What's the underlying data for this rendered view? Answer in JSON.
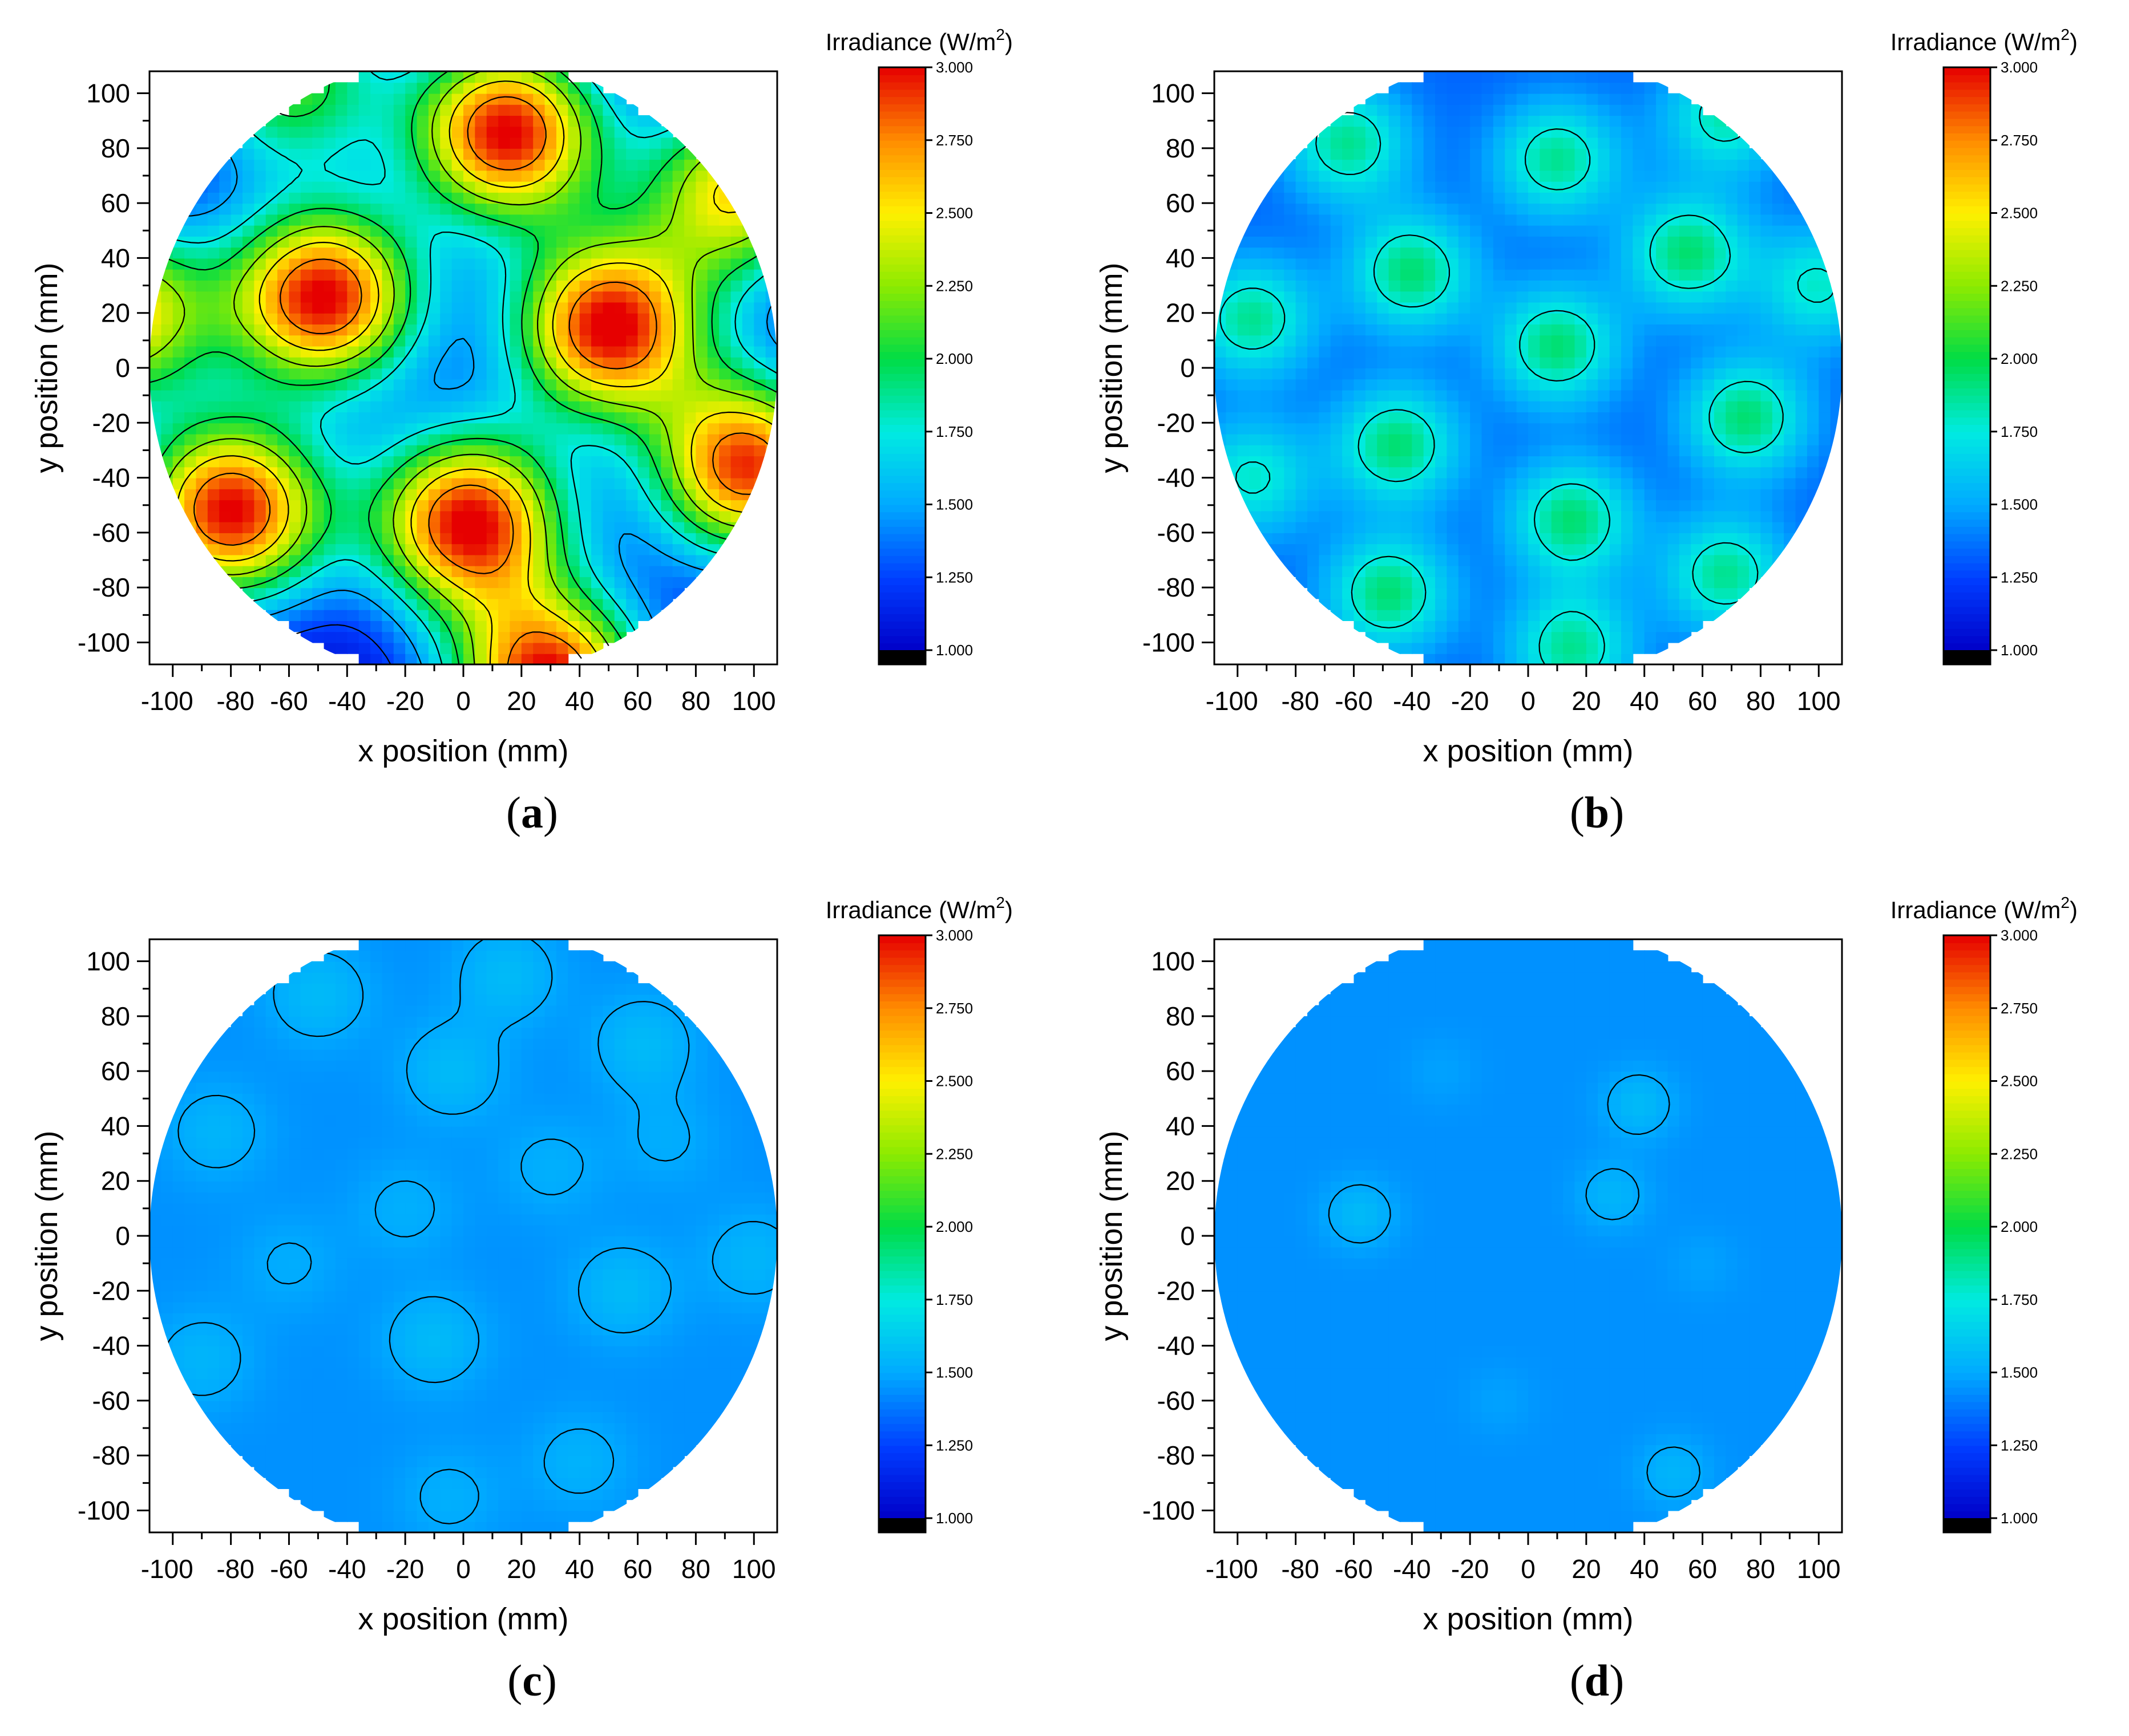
{
  "chart_data": [
    {
      "type": "heatmap",
      "panel_label": "a",
      "title": "",
      "xlabel": "x position (mm)",
      "ylabel": "y position (mm)",
      "xlim": [
        -108,
        108
      ],
      "ylim": [
        -108,
        108
      ],
      "x_ticks": [
        -100,
        -80,
        -60,
        -40,
        -20,
        0,
        20,
        40,
        60,
        80,
        100
      ],
      "x_tick_labels": [
        "-100",
        "-80",
        "-60",
        "-40",
        "-20",
        "0",
        "20",
        "40",
        "60",
        "80",
        "100"
      ],
      "y_ticks": [
        100,
        80,
        60,
        40,
        20,
        0,
        -20,
        -40,
        -60,
        -80,
        -100
      ],
      "y_tick_labels": [
        "100",
        "80",
        "60",
        "40",
        "20",
        "0",
        "-20",
        "-40",
        "-60",
        "-80",
        "-100"
      ],
      "colorbar": {
        "title_prefix": "Irradiance (W/m",
        "title_sup": "2",
        "title_suffix": ")",
        "range": [
          1.0,
          3.0
        ],
        "tick_values": [
          3.0,
          2.75,
          2.5,
          2.25,
          2.0,
          1.75,
          1.5,
          1.25,
          1.0
        ],
        "tick_labels": [
          "3.000",
          "2.750",
          "2.500",
          "2.250",
          "2.000",
          "1.750",
          "1.500",
          "1.250",
          "1.000"
        ]
      },
      "field": {
        "base": 1.0,
        "sigma": 24,
        "peaks": [
          {
            "x": 15,
            "y": 86,
            "amp": 2.0
          },
          {
            "x": -48,
            "y": 26,
            "amp": 2.0
          },
          {
            "x": 50,
            "y": 15,
            "amp": 2.0
          },
          {
            "x": -80,
            "y": -52,
            "amp": 2.0
          },
          {
            "x": 2,
            "y": -56,
            "amp": 2.0
          },
          {
            "x": 98,
            "y": -36,
            "amp": 1.9
          },
          {
            "x": 30,
            "y": -115,
            "amp": 2.0
          },
          {
            "x": -120,
            "y": 20,
            "amp": 1.6
          },
          {
            "x": 95,
            "y": 65,
            "amp": 1.5
          },
          {
            "x": -60,
            "y": 105,
            "amp": 1.1
          }
        ],
        "contour_levels": [
          1.25,
          1.5,
          1.75,
          2.0,
          2.25,
          2.5,
          2.75
        ]
      }
    },
    {
      "type": "heatmap",
      "panel_label": "b",
      "title": "",
      "xlabel": "x position (mm)",
      "ylabel": "y position (mm)",
      "xlim": [
        -108,
        108
      ],
      "ylim": [
        -108,
        108
      ],
      "x_ticks": [
        -100,
        -80,
        -60,
        -40,
        -20,
        0,
        20,
        40,
        60,
        80,
        100
      ],
      "x_tick_labels": [
        "-100",
        "-80",
        "-60",
        "-40",
        "-20",
        "0",
        "20",
        "40",
        "60",
        "80",
        "100"
      ],
      "y_ticks": [
        100,
        80,
        60,
        40,
        20,
        0,
        -20,
        -40,
        -60,
        -80,
        -100
      ],
      "y_tick_labels": [
        "100",
        "80",
        "60",
        "40",
        "20",
        "0",
        "-20",
        "-40",
        "-60",
        "-80",
        "-100"
      ],
      "colorbar": {
        "title_prefix": "Irradiance (W/m",
        "title_sup": "2",
        "title_suffix": ")",
        "range": [
          1.0,
          3.0
        ],
        "tick_values": [
          3.0,
          2.75,
          2.5,
          2.25,
          2.0,
          1.75,
          1.5,
          1.25,
          1.0
        ],
        "tick_labels": [
          "3.000",
          "2.750",
          "2.500",
          "2.250",
          "2.000",
          "1.750",
          "1.500",
          "1.250",
          "1.000"
        ]
      },
      "field": {
        "base": 1.33,
        "sigma": 15,
        "peaks": [
          {
            "x": -62,
            "y": 82,
            "amp": 0.55
          },
          {
            "x": 10,
            "y": 76,
            "amp": 0.55
          },
          {
            "x": 68,
            "y": 92,
            "amp": 0.5
          },
          {
            "x": -40,
            "y": 35,
            "amp": 0.6
          },
          {
            "x": 55,
            "y": 42,
            "amp": 0.6
          },
          {
            "x": 100,
            "y": 30,
            "amp": 0.45
          },
          {
            "x": -95,
            "y": 18,
            "amp": 0.55
          },
          {
            "x": 10,
            "y": 8,
            "amp": 0.6
          },
          {
            "x": -45,
            "y": -28,
            "amp": 0.6
          },
          {
            "x": 75,
            "y": -18,
            "amp": 0.6
          },
          {
            "x": 15,
            "y": -55,
            "amp": 0.6
          },
          {
            "x": -95,
            "y": -40,
            "amp": 0.45
          },
          {
            "x": -48,
            "y": -82,
            "amp": 0.6
          },
          {
            "x": 68,
            "y": -75,
            "amp": 0.55
          },
          {
            "x": 15,
            "y": -102,
            "amp": 0.55
          }
        ],
        "contour_levels": [
          1.25,
          1.75
        ]
      }
    },
    {
      "type": "heatmap",
      "panel_label": "c",
      "title": "",
      "xlabel": "x position (mm)",
      "ylabel": "y position (mm)",
      "xlim": [
        -108,
        108
      ],
      "ylim": [
        -108,
        108
      ],
      "x_ticks": [
        -100,
        -80,
        -60,
        -40,
        -20,
        0,
        20,
        40,
        60,
        80,
        100
      ],
      "x_tick_labels": [
        "-100",
        "-80",
        "-60",
        "-40",
        "-20",
        "0",
        "20",
        "40",
        "60",
        "80",
        "100"
      ],
      "y_ticks": [
        100,
        80,
        60,
        40,
        20,
        0,
        -20,
        -40,
        -60,
        -80,
        -100
      ],
      "y_tick_labels": [
        "100",
        "80",
        "60",
        "40",
        "20",
        "0",
        "-20",
        "-40",
        "-60",
        "-80",
        "-100"
      ],
      "colorbar": {
        "title_prefix": "Irradiance (W/m",
        "title_sup": "2",
        "title_suffix": ")",
        "range": [
          1.0,
          3.0
        ],
        "tick_values": [
          3.0,
          2.75,
          2.5,
          2.25,
          2.0,
          1.75,
          1.5,
          1.25,
          1.0
        ],
        "tick_labels": [
          "3.000",
          "2.750",
          "2.500",
          "2.250",
          "2.000",
          "1.750",
          "1.500",
          "1.250",
          "1.000"
        ]
      },
      "field": {
        "base": 1.44,
        "sigma": 13,
        "peaks": [
          {
            "x": -50,
            "y": 88,
            "amp": 0.12
          },
          {
            "x": 15,
            "y": 95,
            "amp": 0.12
          },
          {
            "x": 62,
            "y": 70,
            "amp": 0.12
          },
          {
            "x": -4,
            "y": 60,
            "amp": 0.12
          },
          {
            "x": -85,
            "y": 38,
            "amp": 0.1
          },
          {
            "x": -10,
            "y": -38,
            "amp": 0.12
          },
          {
            "x": 55,
            "y": -20,
            "amp": 0.12
          },
          {
            "x": 100,
            "y": -8,
            "amp": 0.1
          },
          {
            "x": -90,
            "y": -45,
            "amp": 0.1
          },
          {
            "x": 40,
            "y": -82,
            "amp": 0.09
          },
          {
            "x": -20,
            "y": 10,
            "amp": 0.08
          },
          {
            "x": 30,
            "y": 25,
            "amp": 0.08
          },
          {
            "x": -60,
            "y": -10,
            "amp": 0.07
          },
          {
            "x": 70,
            "y": 35,
            "amp": 0.07
          },
          {
            "x": -5,
            "y": -95,
            "amp": 0.08
          }
        ],
        "contour_levels": [
          1.5
        ]
      }
    },
    {
      "type": "heatmap",
      "panel_label": "d",
      "title": "",
      "xlabel": "x position (mm)",
      "ylabel": "y position (mm)",
      "xlim": [
        -108,
        108
      ],
      "ylim": [
        -108,
        108
      ],
      "x_ticks": [
        -100,
        -80,
        -60,
        -40,
        -20,
        0,
        20,
        40,
        60,
        80,
        100
      ],
      "x_tick_labels": [
        "-100",
        "-80",
        "-60",
        "-40",
        "-20",
        "0",
        "20",
        "40",
        "60",
        "80",
        "100"
      ],
      "y_ticks": [
        100,
        80,
        60,
        40,
        20,
        0,
        -20,
        -40,
        -60,
        -80,
        -100
      ],
      "y_tick_labels": [
        "100",
        "80",
        "60",
        "40",
        "20",
        "0",
        "-20",
        "-40",
        "-60",
        "-80",
        "-100"
      ],
      "colorbar": {
        "title_prefix": "Irradiance (W/m",
        "title_sup": "2",
        "title_suffix": ")",
        "range": [
          1.0,
          3.0
        ],
        "tick_values": [
          3.0,
          2.75,
          2.5,
          2.25,
          2.0,
          1.75,
          1.5,
          1.25,
          1.0
        ],
        "tick_labels": [
          "3.000",
          "2.750",
          "2.500",
          "2.250",
          "2.000",
          "1.750",
          "1.500",
          "1.250",
          "1.000"
        ]
      },
      "field": {
        "base": 1.44,
        "sigma": 9,
        "peaks": [
          {
            "x": 38,
            "y": 48,
            "amp": 0.12
          },
          {
            "x": -58,
            "y": 8,
            "amp": 0.12
          },
          {
            "x": 29,
            "y": 15,
            "amp": 0.1
          },
          {
            "x": 50,
            "y": -86,
            "amp": 0.1
          },
          {
            "x": -30,
            "y": 60,
            "amp": 0.04
          },
          {
            "x": 60,
            "y": -10,
            "amp": 0.04
          },
          {
            "x": -10,
            "y": -60,
            "amp": 0.04
          }
        ],
        "contour_levels": [
          1.5
        ]
      }
    }
  ]
}
